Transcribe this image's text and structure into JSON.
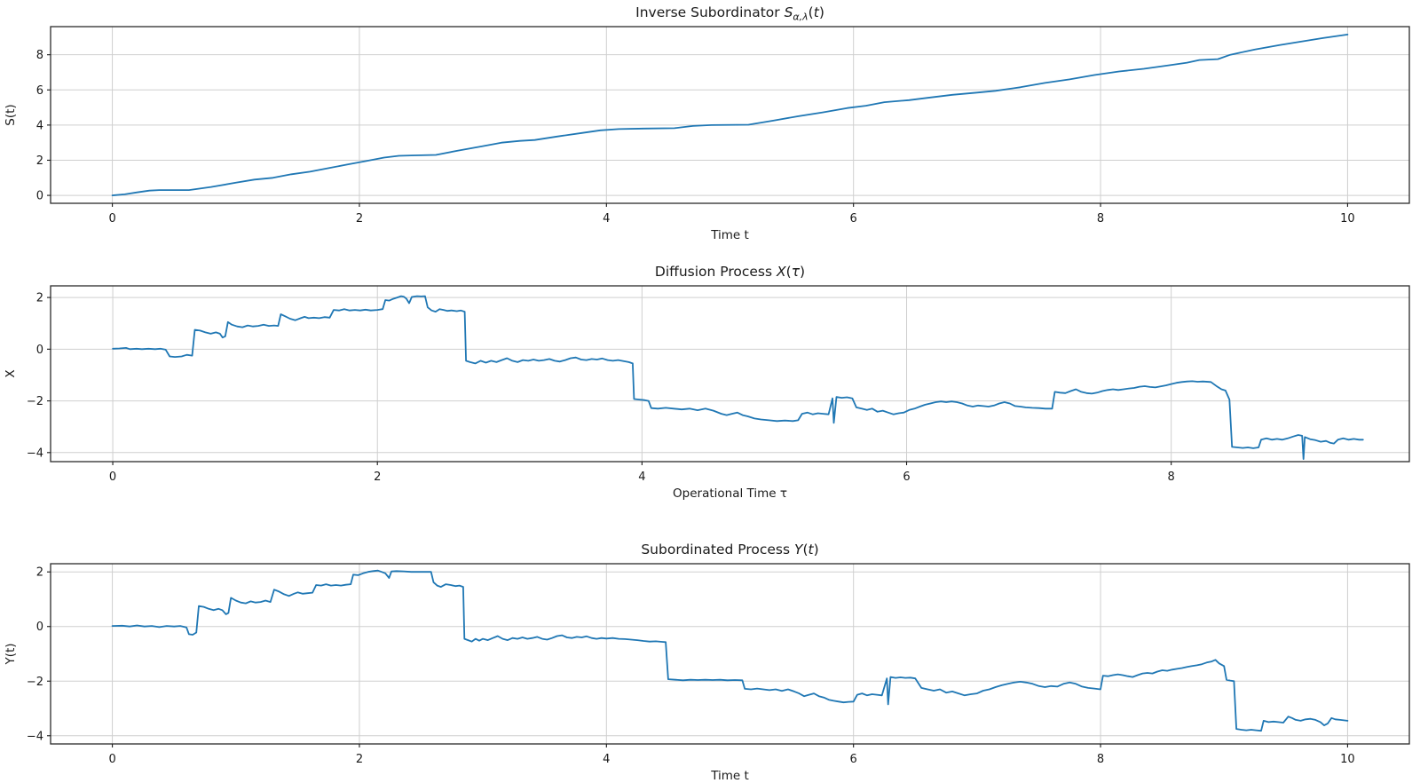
{
  "figure": {
    "background": "#ffffff",
    "line_color": "#1f77b4",
    "grid_color": "#cfcfcf",
    "spine_color": "#2b2b2b",
    "text_color": "#1a1a1a"
  },
  "chart_data": [
    {
      "type": "line",
      "title": {
        "prefix": "Inverse Subordinator ",
        "var": "S",
        "sub": "α,λ",
        "open": "(",
        "arg": "t",
        "close": ")"
      },
      "xlabel": "Time t",
      "ylabel": "S(t)",
      "legend": null,
      "grid": true,
      "xlim": [
        -0.5,
        10.5
      ],
      "ylim": [
        -0.45,
        9.6
      ],
      "xticks": [
        0,
        2,
        4,
        6,
        8,
        10
      ],
      "xtick_labels": [
        "0",
        "2",
        "4",
        "6",
        "8",
        "10"
      ],
      "yticks": [
        0,
        2,
        4,
        6,
        8
      ],
      "ytick_labels": [
        "0",
        "2",
        "4",
        "6",
        "8"
      ],
      "x": [
        0,
        0.1,
        0.2,
        0.3,
        0.38,
        0.62,
        0.8,
        1.0,
        1.15,
        1.3,
        1.45,
        1.6,
        1.75,
        1.9,
        2.05,
        2.2,
        2.32,
        2.42,
        2.62,
        2.8,
        3.0,
        3.15,
        3.3,
        3.42,
        3.6,
        3.8,
        3.95,
        4.1,
        4.3,
        4.55,
        4.7,
        4.85,
        5.15,
        5.35,
        5.55,
        5.75,
        5.95,
        6.1,
        6.25,
        6.45,
        6.6,
        6.8,
        7.0,
        7.15,
        7.35,
        7.55,
        7.75,
        7.95,
        8.15,
        8.35,
        8.55,
        8.7,
        8.8,
        8.95,
        9.05,
        9.25,
        9.45,
        9.6,
        9.8,
        10
      ],
      "y": [
        0,
        0.06,
        0.17,
        0.27,
        0.3,
        0.3,
        0.48,
        0.72,
        0.9,
        1.0,
        1.2,
        1.35,
        1.55,
        1.75,
        1.95,
        2.15,
        2.25,
        2.27,
        2.3,
        2.55,
        2.8,
        3.0,
        3.1,
        3.15,
        3.35,
        3.55,
        3.7,
        3.77,
        3.8,
        3.82,
        3.95,
        4.0,
        4.02,
        4.25,
        4.5,
        4.72,
        4.97,
        5.1,
        5.3,
        5.42,
        5.55,
        5.72,
        5.85,
        5.95,
        6.15,
        6.4,
        6.6,
        6.85,
        7.05,
        7.2,
        7.4,
        7.55,
        7.7,
        7.75,
        8.0,
        8.3,
        8.55,
        8.72,
        8.95,
        9.15
      ]
    },
    {
      "type": "line",
      "title": {
        "prefix": "Diffusion Process ",
        "var": "X",
        "sub": "",
        "open": "(",
        "arg": "τ",
        "close": ")"
      },
      "xlabel": "Operational Time τ",
      "ylabel": "X",
      "legend": null,
      "grid": true,
      "xlim": [
        -0.47,
        9.8
      ],
      "ylim": [
        -4.35,
        2.45
      ],
      "xticks": [
        0,
        2,
        4,
        6,
        8
      ],
      "xtick_labels": [
        "0",
        "2",
        "4",
        "6",
        "8"
      ],
      "yticks": [
        -4,
        -2,
        0,
        2
      ],
      "ytick_labels": [
        "−4",
        "−2",
        "0",
        "2"
      ],
      "x": [
        0,
        0.05,
        0.1,
        0.13,
        0.18,
        0.22,
        0.27,
        0.32,
        0.36,
        0.4,
        0.43,
        0.47,
        0.52,
        0.56,
        0.6,
        0.62,
        0.66,
        0.7,
        0.74,
        0.78,
        0.81,
        0.83,
        0.85,
        0.87,
        0.9,
        0.94,
        0.98,
        1.02,
        1.06,
        1.1,
        1.14,
        1.18,
        1.22,
        1.25,
        1.27,
        1.3,
        1.34,
        1.38,
        1.42,
        1.45,
        1.48,
        1.52,
        1.56,
        1.6,
        1.64,
        1.67,
        1.71,
        1.75,
        1.79,
        1.83,
        1.87,
        1.91,
        1.95,
        2.0,
        2.04,
        2.06,
        2.09,
        2.12,
        2.15,
        2.18,
        2.2,
        2.22,
        2.24,
        2.26,
        2.3,
        2.33,
        2.36,
        2.38,
        2.41,
        2.44,
        2.47,
        2.5,
        2.53,
        2.56,
        2.6,
        2.63,
        2.66,
        2.67,
        2.7,
        2.74,
        2.78,
        2.82,
        2.86,
        2.9,
        2.94,
        2.98,
        3.02,
        3.06,
        3.1,
        3.14,
        3.18,
        3.22,
        3.26,
        3.3,
        3.34,
        3.38,
        3.42,
        3.46,
        3.5,
        3.54,
        3.58,
        3.62,
        3.66,
        3.7,
        3.74,
        3.78,
        3.82,
        3.86,
        3.9,
        3.93,
        3.94,
        3.98,
        4.02,
        4.05,
        4.07,
        4.12,
        4.18,
        4.24,
        4.3,
        4.36,
        4.42,
        4.48,
        4.54,
        4.6,
        4.64,
        4.68,
        4.72,
        4.76,
        4.8,
        4.85,
        4.9,
        4.96,
        5.02,
        5.08,
        5.14,
        5.18,
        5.21,
        5.25,
        5.29,
        5.33,
        5.37,
        5.41,
        5.44,
        5.45,
        5.47,
        5.51,
        5.55,
        5.59,
        5.62,
        5.66,
        5.7,
        5.74,
        5.78,
        5.82,
        5.86,
        5.9,
        5.94,
        5.98,
        6.02,
        6.06,
        6.1,
        6.14,
        6.18,
        6.22,
        6.26,
        6.3,
        6.34,
        6.38,
        6.42,
        6.46,
        6.5,
        6.54,
        6.58,
        6.62,
        6.66,
        6.7,
        6.74,
        6.78,
        6.82,
        6.86,
        6.9,
        6.95,
        7.0,
        7.05,
        7.1,
        7.12,
        7.16,
        7.2,
        7.24,
        7.28,
        7.32,
        7.36,
        7.4,
        7.44,
        7.48,
        7.52,
        7.56,
        7.6,
        7.64,
        7.68,
        7.72,
        7.76,
        7.8,
        7.84,
        7.88,
        7.92,
        7.96,
        8.0,
        8.04,
        8.08,
        8.12,
        8.16,
        8.2,
        8.24,
        8.3,
        8.34,
        8.38,
        8.41,
        8.44,
        8.46,
        8.5,
        8.54,
        8.58,
        8.62,
        8.66,
        8.68,
        8.72,
        8.76,
        8.8,
        8.84,
        8.88,
        8.92,
        8.96,
        8.99,
        9.0,
        9.01,
        9.05,
        9.09,
        9.13,
        9.17,
        9.2,
        9.23,
        9.26,
        9.3,
        9.34,
        9.38,
        9.42,
        9.45
      ],
      "y": [
        0.02,
        0.03,
        0.05,
        0.0,
        0.02,
        0.0,
        0.02,
        0.0,
        0.02,
        -0.02,
        -0.28,
        -0.3,
        -0.28,
        -0.22,
        -0.25,
        0.75,
        0.72,
        0.65,
        0.6,
        0.65,
        0.6,
        0.45,
        0.5,
        1.05,
        0.95,
        0.88,
        0.85,
        0.92,
        0.88,
        0.9,
        0.95,
        0.9,
        0.92,
        0.9,
        1.35,
        1.28,
        1.18,
        1.12,
        1.2,
        1.25,
        1.2,
        1.22,
        1.2,
        1.24,
        1.22,
        1.52,
        1.5,
        1.55,
        1.5,
        1.52,
        1.5,
        1.53,
        1.5,
        1.52,
        1.55,
        1.9,
        1.88,
        1.95,
        2.0,
        2.05,
        2.03,
        1.95,
        1.78,
        2.02,
        2.05,
        2.04,
        2.05,
        1.62,
        1.5,
        1.45,
        1.55,
        1.52,
        1.48,
        1.5,
        1.47,
        1.5,
        1.45,
        -0.45,
        -0.5,
        -0.55,
        -0.45,
        -0.52,
        -0.45,
        -0.5,
        -0.42,
        -0.35,
        -0.45,
        -0.5,
        -0.42,
        -0.45,
        -0.4,
        -0.45,
        -0.42,
        -0.38,
        -0.45,
        -0.48,
        -0.42,
        -0.35,
        -0.32,
        -0.4,
        -0.42,
        -0.38,
        -0.4,
        -0.36,
        -0.42,
        -0.45,
        -0.42,
        -0.46,
        -0.5,
        -0.55,
        -1.93,
        -1.95,
        -1.97,
        -2.0,
        -2.28,
        -2.3,
        -2.27,
        -2.3,
        -2.33,
        -2.3,
        -2.36,
        -2.3,
        -2.38,
        -2.5,
        -2.55,
        -2.5,
        -2.45,
        -2.55,
        -2.6,
        -2.68,
        -2.72,
        -2.75,
        -2.78,
        -2.76,
        -2.78,
        -2.75,
        -2.5,
        -2.45,
        -2.52,
        -2.48,
        -2.5,
        -2.52,
        -1.9,
        -2.85,
        -1.85,
        -1.88,
        -1.86,
        -1.9,
        -2.25,
        -2.3,
        -2.35,
        -2.3,
        -2.42,
        -2.38,
        -2.45,
        -2.52,
        -2.48,
        -2.45,
        -2.35,
        -2.3,
        -2.22,
        -2.15,
        -2.1,
        -2.05,
        -2.02,
        -2.05,
        -2.02,
        -2.05,
        -2.1,
        -2.18,
        -2.22,
        -2.18,
        -2.2,
        -2.22,
        -2.18,
        -2.1,
        -2.05,
        -2.1,
        -2.2,
        -2.22,
        -2.25,
        -2.27,
        -2.28,
        -2.3,
        -2.3,
        -1.65,
        -1.68,
        -1.7,
        -1.62,
        -1.55,
        -1.65,
        -1.7,
        -1.72,
        -1.68,
        -1.62,
        -1.58,
        -1.55,
        -1.58,
        -1.55,
        -1.52,
        -1.5,
        -1.45,
        -1.43,
        -1.46,
        -1.48,
        -1.44,
        -1.4,
        -1.35,
        -1.3,
        -1.27,
        -1.25,
        -1.24,
        -1.26,
        -1.25,
        -1.27,
        -1.42,
        -1.55,
        -1.6,
        -1.95,
        -3.78,
        -3.8,
        -3.82,
        -3.8,
        -3.83,
        -3.8,
        -3.5,
        -3.45,
        -3.5,
        -3.47,
        -3.5,
        -3.45,
        -3.38,
        -3.32,
        -3.35,
        -4.25,
        -3.4,
        -3.48,
        -3.52,
        -3.58,
        -3.55,
        -3.62,
        -3.65,
        -3.5,
        -3.45,
        -3.5,
        -3.47,
        -3.5,
        -3.5
      ]
    },
    {
      "type": "line",
      "title": {
        "prefix": "Subordinated Process ",
        "var": "Y",
        "sub": "",
        "open": "(",
        "arg": "t",
        "close": ")"
      },
      "xlabel": "Time t",
      "ylabel": "Y(t)",
      "legend": null,
      "grid": true,
      "xlim": [
        -0.5,
        10.5
      ],
      "ylim": [
        -4.3,
        2.3
      ],
      "xticks": [
        0,
        2,
        4,
        6,
        8,
        10
      ],
      "xtick_labels": [
        "0",
        "2",
        "4",
        "6",
        "8",
        "10"
      ],
      "yticks": [
        -4,
        -2,
        0,
        2
      ],
      "ytick_labels": [
        "−4",
        "−2",
        "0",
        "2"
      ],
      "x": [
        0,
        0.08,
        0.14,
        0.2,
        0.26,
        0.32,
        0.38,
        0.44,
        0.5,
        0.55,
        0.6,
        0.62,
        0.65,
        0.68,
        0.7,
        0.74,
        0.78,
        0.82,
        0.86,
        0.89,
        0.92,
        0.94,
        0.96,
        1.0,
        1.04,
        1.08,
        1.12,
        1.16,
        1.2,
        1.24,
        1.28,
        1.31,
        1.35,
        1.39,
        1.43,
        1.47,
        1.5,
        1.54,
        1.58,
        1.62,
        1.65,
        1.69,
        1.73,
        1.77,
        1.81,
        1.85,
        1.89,
        1.93,
        1.95,
        1.99,
        2.03,
        2.07,
        2.11,
        2.15,
        2.18,
        2.21,
        2.24,
        2.26,
        2.3,
        2.36,
        2.42,
        2.48,
        2.54,
        2.58,
        2.6,
        2.63,
        2.66,
        2.7,
        2.74,
        2.78,
        2.81,
        2.84,
        2.85,
        2.88,
        2.91,
        2.94,
        2.97,
        3.0,
        3.04,
        3.08,
        3.12,
        3.16,
        3.2,
        3.24,
        3.28,
        3.32,
        3.36,
        3.4,
        3.44,
        3.48,
        3.52,
        3.56,
        3.6,
        3.64,
        3.68,
        3.72,
        3.76,
        3.8,
        3.84,
        3.88,
        3.92,
        3.96,
        4.0,
        4.05,
        4.1,
        4.15,
        4.2,
        4.25,
        4.3,
        4.35,
        4.4,
        4.45,
        4.48,
        4.5,
        4.56,
        4.62,
        4.68,
        4.74,
        4.8,
        4.86,
        4.92,
        4.98,
        5.04,
        5.1,
        5.12,
        5.17,
        5.22,
        5.27,
        5.32,
        5.37,
        5.42,
        5.47,
        5.52,
        5.56,
        5.6,
        5.64,
        5.68,
        5.72,
        5.76,
        5.8,
        5.84,
        5.88,
        5.92,
        5.96,
        6.0,
        6.03,
        6.07,
        6.11,
        6.15,
        6.19,
        6.23,
        6.27,
        6.28,
        6.3,
        6.34,
        6.38,
        6.42,
        6.46,
        6.5,
        6.55,
        6.6,
        6.65,
        6.7,
        6.75,
        6.8,
        6.85,
        6.9,
        6.95,
        7.0,
        7.05,
        7.1,
        7.15,
        7.2,
        7.25,
        7.3,
        7.35,
        7.4,
        7.45,
        7.5,
        7.55,
        7.6,
        7.65,
        7.7,
        7.75,
        7.8,
        7.85,
        7.9,
        7.95,
        8.0,
        8.02,
        8.06,
        8.1,
        8.14,
        8.18,
        8.22,
        8.26,
        8.3,
        8.34,
        8.38,
        8.42,
        8.46,
        8.5,
        8.54,
        8.58,
        8.62,
        8.66,
        8.7,
        8.74,
        8.78,
        8.82,
        8.86,
        8.9,
        8.93,
        8.96,
        9.0,
        9.02,
        9.05,
        9.08,
        9.1,
        9.14,
        9.18,
        9.22,
        9.26,
        9.3,
        9.32,
        9.36,
        9.4,
        9.44,
        9.48,
        9.52,
        9.55,
        9.58,
        9.62,
        9.66,
        9.7,
        9.74,
        9.78,
        9.81,
        9.84,
        9.87,
        9.9,
        9.94,
        10.0
      ],
      "y": [
        0.02,
        0.03,
        0.0,
        0.04,
        0.0,
        0.02,
        -0.02,
        0.02,
        0.0,
        0.02,
        -0.03,
        -0.28,
        -0.3,
        -0.22,
        0.75,
        0.72,
        0.65,
        0.6,
        0.65,
        0.6,
        0.45,
        0.5,
        1.05,
        0.95,
        0.88,
        0.85,
        0.92,
        0.88,
        0.9,
        0.95,
        0.9,
        1.35,
        1.28,
        1.18,
        1.12,
        1.2,
        1.25,
        1.2,
        1.22,
        1.24,
        1.52,
        1.5,
        1.55,
        1.5,
        1.52,
        1.5,
        1.53,
        1.55,
        1.9,
        1.88,
        1.95,
        2.0,
        2.03,
        2.05,
        2.0,
        1.95,
        1.78,
        2.02,
        2.03,
        2.02,
        2.0,
        2.0,
        2.0,
        2.0,
        1.62,
        1.5,
        1.45,
        1.55,
        1.52,
        1.48,
        1.5,
        1.45,
        -0.45,
        -0.5,
        -0.55,
        -0.45,
        -0.52,
        -0.45,
        -0.5,
        -0.42,
        -0.35,
        -0.45,
        -0.5,
        -0.42,
        -0.45,
        -0.4,
        -0.45,
        -0.42,
        -0.38,
        -0.45,
        -0.48,
        -0.42,
        -0.35,
        -0.32,
        -0.4,
        -0.42,
        -0.38,
        -0.4,
        -0.36,
        -0.42,
        -0.45,
        -0.42,
        -0.44,
        -0.42,
        -0.45,
        -0.46,
        -0.48,
        -0.5,
        -0.53,
        -0.55,
        -0.54,
        -0.56,
        -0.57,
        -1.93,
        -1.95,
        -1.97,
        -1.95,
        -1.96,
        -1.95,
        -1.96,
        -1.95,
        -1.97,
        -1.96,
        -1.97,
        -2.28,
        -2.3,
        -2.27,
        -2.3,
        -2.33,
        -2.3,
        -2.36,
        -2.3,
        -2.38,
        -2.45,
        -2.55,
        -2.5,
        -2.45,
        -2.55,
        -2.6,
        -2.68,
        -2.72,
        -2.75,
        -2.78,
        -2.76,
        -2.75,
        -2.5,
        -2.45,
        -2.52,
        -2.48,
        -2.5,
        -2.52,
        -1.9,
        -2.85,
        -1.85,
        -1.88,
        -1.86,
        -1.88,
        -1.87,
        -1.9,
        -2.25,
        -2.3,
        -2.35,
        -2.3,
        -2.42,
        -2.38,
        -2.45,
        -2.52,
        -2.48,
        -2.45,
        -2.35,
        -2.3,
        -2.22,
        -2.15,
        -2.1,
        -2.05,
        -2.02,
        -2.05,
        -2.1,
        -2.18,
        -2.22,
        -2.18,
        -2.2,
        -2.1,
        -2.05,
        -2.1,
        -2.2,
        -2.25,
        -2.27,
        -2.3,
        -1.8,
        -1.82,
        -1.78,
        -1.75,
        -1.78,
        -1.82,
        -1.85,
        -1.78,
        -1.72,
        -1.7,
        -1.72,
        -1.65,
        -1.6,
        -1.62,
        -1.58,
        -1.55,
        -1.52,
        -1.48,
        -1.45,
        -1.42,
        -1.38,
        -1.32,
        -1.28,
        -1.22,
        -1.35,
        -1.45,
        -1.95,
        -1.98,
        -2.0,
        -3.75,
        -3.78,
        -3.8,
        -3.78,
        -3.8,
        -3.82,
        -3.45,
        -3.5,
        -3.48,
        -3.5,
        -3.52,
        -3.3,
        -3.35,
        -3.42,
        -3.45,
        -3.4,
        -3.38,
        -3.42,
        -3.5,
        -3.62,
        -3.55,
        -3.35,
        -3.4,
        -3.42,
        -3.45
      ]
    }
  ]
}
